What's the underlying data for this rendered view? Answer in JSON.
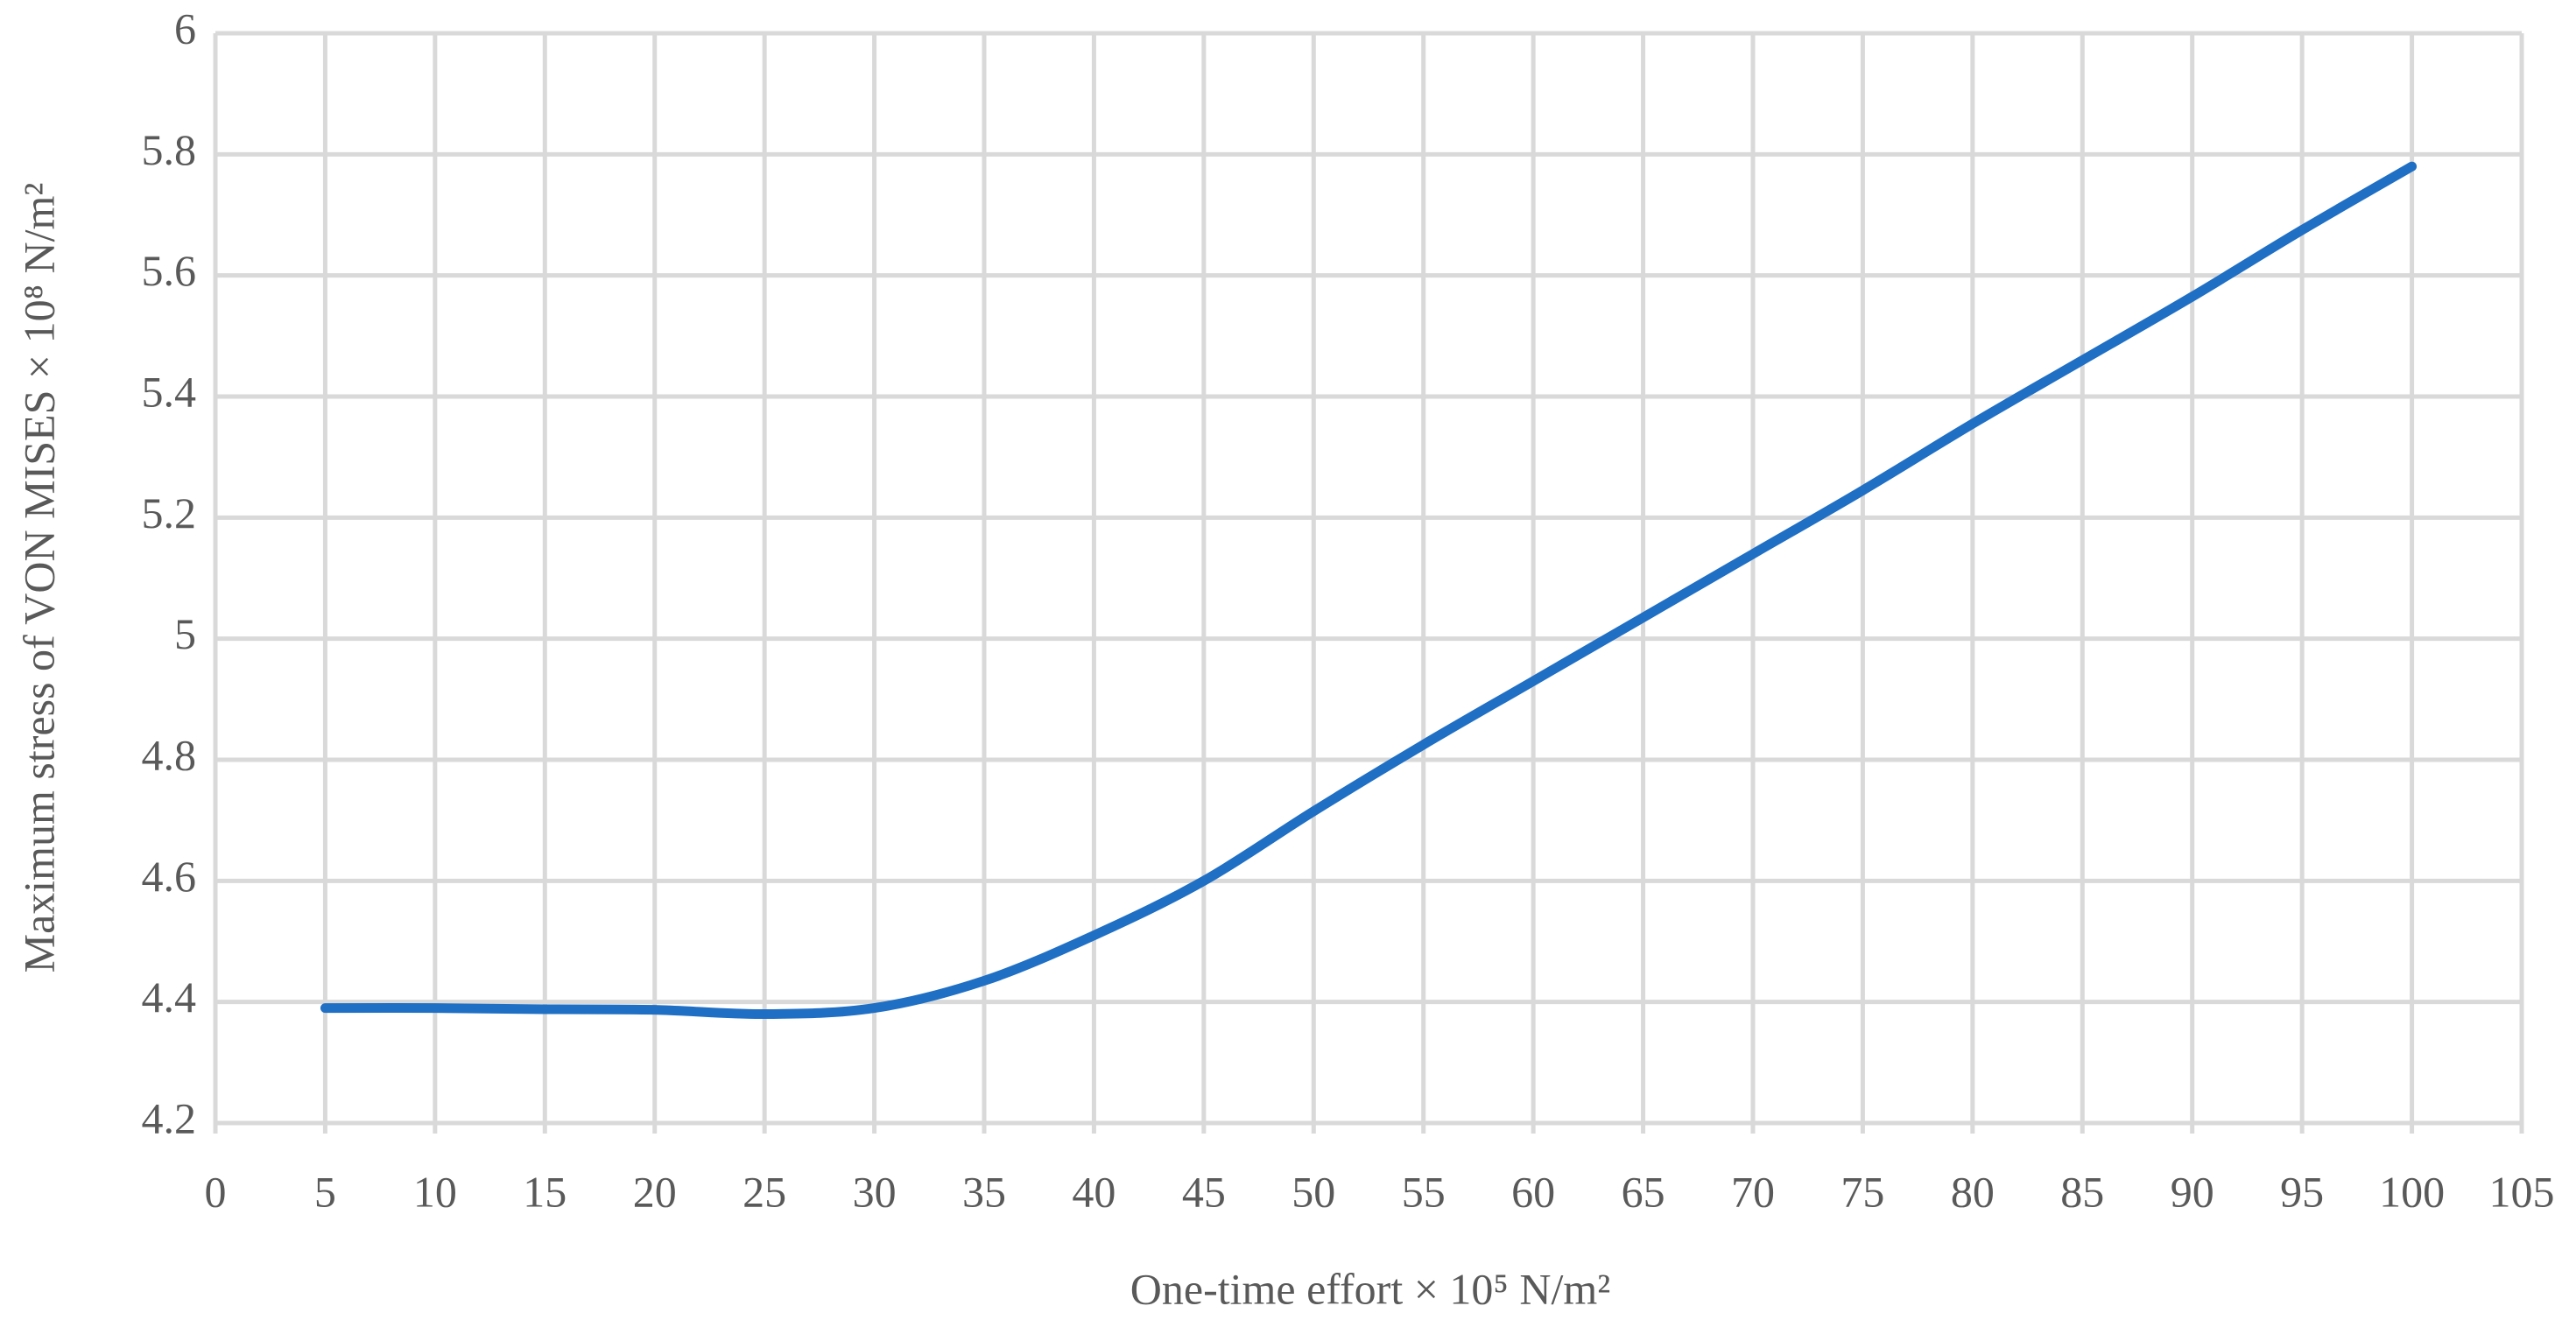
{
  "chart_data": {
    "type": "line",
    "x_label": "One-time effort × 10⁵ N/m²",
    "y_label": "Maximum stress of VON MISES × 10⁸ N/m²",
    "x": [
      5,
      10,
      15,
      20,
      25,
      30,
      35,
      40,
      45,
      50,
      55,
      60,
      65,
      70,
      75,
      80,
      85,
      90,
      95,
      100
    ],
    "series": [
      {
        "name": "Maximum stress",
        "color": "#1f6fc5",
        "values": [
          4.39,
          4.39,
          4.388,
          4.387,
          4.38,
          4.39,
          4.435,
          4.51,
          4.6,
          4.715,
          4.825,
          4.93,
          5.035,
          5.14,
          5.245,
          5.355,
          5.46,
          5.565,
          5.675,
          5.78
        ]
      }
    ],
    "xlim": [
      0,
      105
    ],
    "xticks": [
      0,
      5,
      10,
      15,
      20,
      25,
      30,
      35,
      40,
      45,
      50,
      55,
      60,
      65,
      70,
      75,
      80,
      85,
      90,
      95,
      100,
      105
    ],
    "ylim": [
      4.2,
      6
    ],
    "yticks": [
      4.2,
      4.4,
      4.6,
      4.8,
      5,
      5.2,
      5.4,
      5.6,
      5.8,
      6
    ],
    "grid": true
  }
}
